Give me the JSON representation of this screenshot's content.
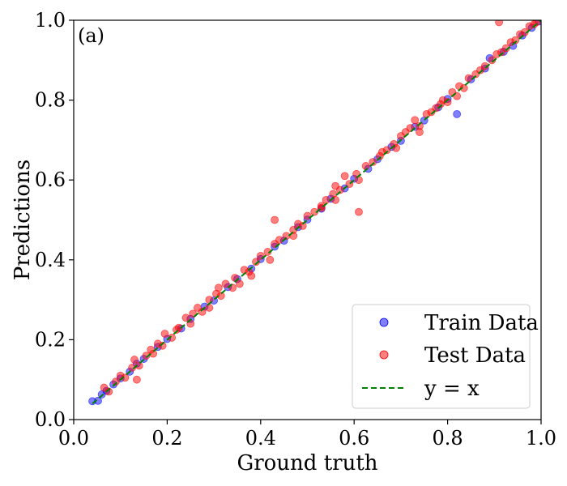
{
  "chart_data": {
    "type": "scatter",
    "panel_label": "(a)",
    "xlabel": "Ground truth",
    "ylabel": "Predictions",
    "xlim": [
      0.0,
      1.0
    ],
    "ylim": [
      0.0,
      1.0
    ],
    "xticks": [
      "0.0",
      "0.2",
      "0.4",
      "0.6",
      "0.8",
      "1.0"
    ],
    "yticks": [
      "0.0",
      "0.2",
      "0.4",
      "0.6",
      "0.8",
      "1.0"
    ],
    "grid": false,
    "legend_position": "bottom-right",
    "series": [
      {
        "name": "Train Data",
        "color": "#0000ff",
        "alpha": 0.5,
        "points": [
          [
            0.04,
            0.046
          ],
          [
            0.052,
            0.047
          ],
          [
            0.06,
            0.063
          ],
          [
            0.07,
            0.072
          ],
          [
            0.085,
            0.088
          ],
          [
            0.1,
            0.103
          ],
          [
            0.12,
            0.12
          ],
          [
            0.135,
            0.14
          ],
          [
            0.15,
            0.152
          ],
          [
            0.18,
            0.182
          ],
          [
            0.2,
            0.202
          ],
          [
            0.23,
            0.228
          ],
          [
            0.25,
            0.252
          ],
          [
            0.28,
            0.283
          ],
          [
            0.3,
            0.298
          ],
          [
            0.33,
            0.332
          ],
          [
            0.35,
            0.352
          ],
          [
            0.38,
            0.378
          ],
          [
            0.4,
            0.402
          ],
          [
            0.43,
            0.433
          ],
          [
            0.45,
            0.448
          ],
          [
            0.48,
            0.482
          ],
          [
            0.5,
            0.501
          ],
          [
            0.53,
            0.528
          ],
          [
            0.55,
            0.553
          ],
          [
            0.58,
            0.579
          ],
          [
            0.6,
            0.603
          ],
          [
            0.63,
            0.628
          ],
          [
            0.65,
            0.652
          ],
          [
            0.68,
            0.683
          ],
          [
            0.7,
            0.698
          ],
          [
            0.73,
            0.733
          ],
          [
            0.75,
            0.749
          ],
          [
            0.78,
            0.782
          ],
          [
            0.8,
            0.803
          ],
          [
            0.82,
            0.765
          ],
          [
            0.85,
            0.852
          ],
          [
            0.88,
            0.879
          ],
          [
            0.89,
            0.905
          ],
          [
            0.92,
            0.921
          ],
          [
            0.94,
            0.936
          ],
          [
            0.96,
            0.962
          ],
          [
            0.98,
            0.981
          ],
          [
            0.995,
            0.997
          ]
        ]
      },
      {
        "name": "Test Data",
        "color": "#ff0000",
        "alpha": 0.5,
        "points": [
          [
            0.065,
            0.08
          ],
          [
            0.075,
            0.07
          ],
          [
            0.09,
            0.095
          ],
          [
            0.1,
            0.11
          ],
          [
            0.11,
            0.105
          ],
          [
            0.125,
            0.13
          ],
          [
            0.13,
            0.15
          ],
          [
            0.135,
            0.1
          ],
          [
            0.14,
            0.135
          ],
          [
            0.155,
            0.16
          ],
          [
            0.165,
            0.175
          ],
          [
            0.18,
            0.19
          ],
          [
            0.19,
            0.185
          ],
          [
            0.195,
            0.215
          ],
          [
            0.21,
            0.205
          ],
          [
            0.225,
            0.23
          ],
          [
            0.24,
            0.255
          ],
          [
            0.25,
            0.24
          ],
          [
            0.255,
            0.265
          ],
          [
            0.265,
            0.28
          ],
          [
            0.275,
            0.27
          ],
          [
            0.29,
            0.3
          ],
          [
            0.305,
            0.315
          ],
          [
            0.315,
            0.31
          ],
          [
            0.325,
            0.34
          ],
          [
            0.34,
            0.33
          ],
          [
            0.345,
            0.355
          ],
          [
            0.355,
            0.34
          ],
          [
            0.365,
            0.375
          ],
          [
            0.375,
            0.37
          ],
          [
            0.39,
            0.395
          ],
          [
            0.4,
            0.41
          ],
          [
            0.415,
            0.42
          ],
          [
            0.43,
            0.44
          ],
          [
            0.43,
            0.5
          ],
          [
            0.44,
            0.45
          ],
          [
            0.455,
            0.46
          ],
          [
            0.47,
            0.475
          ],
          [
            0.48,
            0.49
          ],
          [
            0.49,
            0.485
          ],
          [
            0.5,
            0.51
          ],
          [
            0.515,
            0.52
          ],
          [
            0.53,
            0.535
          ],
          [
            0.54,
            0.55
          ],
          [
            0.555,
            0.565
          ],
          [
            0.56,
            0.585
          ],
          [
            0.57,
            0.575
          ],
          [
            0.58,
            0.61
          ],
          [
            0.59,
            0.59
          ],
          [
            0.605,
            0.615
          ],
          [
            0.61,
            0.6
          ],
          [
            0.61,
            0.52
          ],
          [
            0.625,
            0.635
          ],
          [
            0.64,
            0.645
          ],
          [
            0.655,
            0.66
          ],
          [
            0.67,
            0.675
          ],
          [
            0.685,
            0.69
          ],
          [
            0.69,
            0.68
          ],
          [
            0.7,
            0.71
          ],
          [
            0.71,
            0.72
          ],
          [
            0.72,
            0.73
          ],
          [
            0.73,
            0.75
          ],
          [
            0.74,
            0.735
          ],
          [
            0.755,
            0.765
          ],
          [
            0.765,
            0.77
          ],
          [
            0.775,
            0.78
          ],
          [
            0.785,
            0.79
          ],
          [
            0.79,
            0.8
          ],
          [
            0.8,
            0.795
          ],
          [
            0.81,
            0.82
          ],
          [
            0.825,
            0.835
          ],
          [
            0.835,
            0.83
          ],
          [
            0.845,
            0.855
          ],
          [
            0.86,
            0.865
          ],
          [
            0.87,
            0.875
          ],
          [
            0.88,
            0.885
          ],
          [
            0.895,
            0.9
          ],
          [
            0.905,
            0.915
          ],
          [
            0.915,
            0.92
          ],
          [
            0.925,
            0.93
          ],
          [
            0.935,
            0.945
          ],
          [
            0.945,
            0.95
          ],
          [
            0.955,
            0.965
          ],
          [
            0.965,
            0.97
          ],
          [
            0.975,
            0.985
          ],
          [
            0.985,
            0.99
          ],
          [
            0.99,
            0.995
          ],
          [
            0.91,
            0.995
          ],
          [
            0.38,
            0.36
          ],
          [
            0.42,
            0.4
          ],
          [
            0.53,
            0.53
          ],
          [
            0.47,
            0.46
          ],
          [
            0.29,
            0.28
          ],
          [
            0.31,
            0.33
          ],
          [
            0.56,
            0.55
          ],
          [
            0.66,
            0.67
          ],
          [
            0.74,
            0.72
          ],
          [
            0.82,
            0.81
          ],
          [
            0.17,
            0.165
          ],
          [
            0.22,
            0.225
          ]
        ]
      }
    ],
    "reference_line": {
      "name": "y = x",
      "color": "#008000",
      "style": "dashed"
    }
  }
}
